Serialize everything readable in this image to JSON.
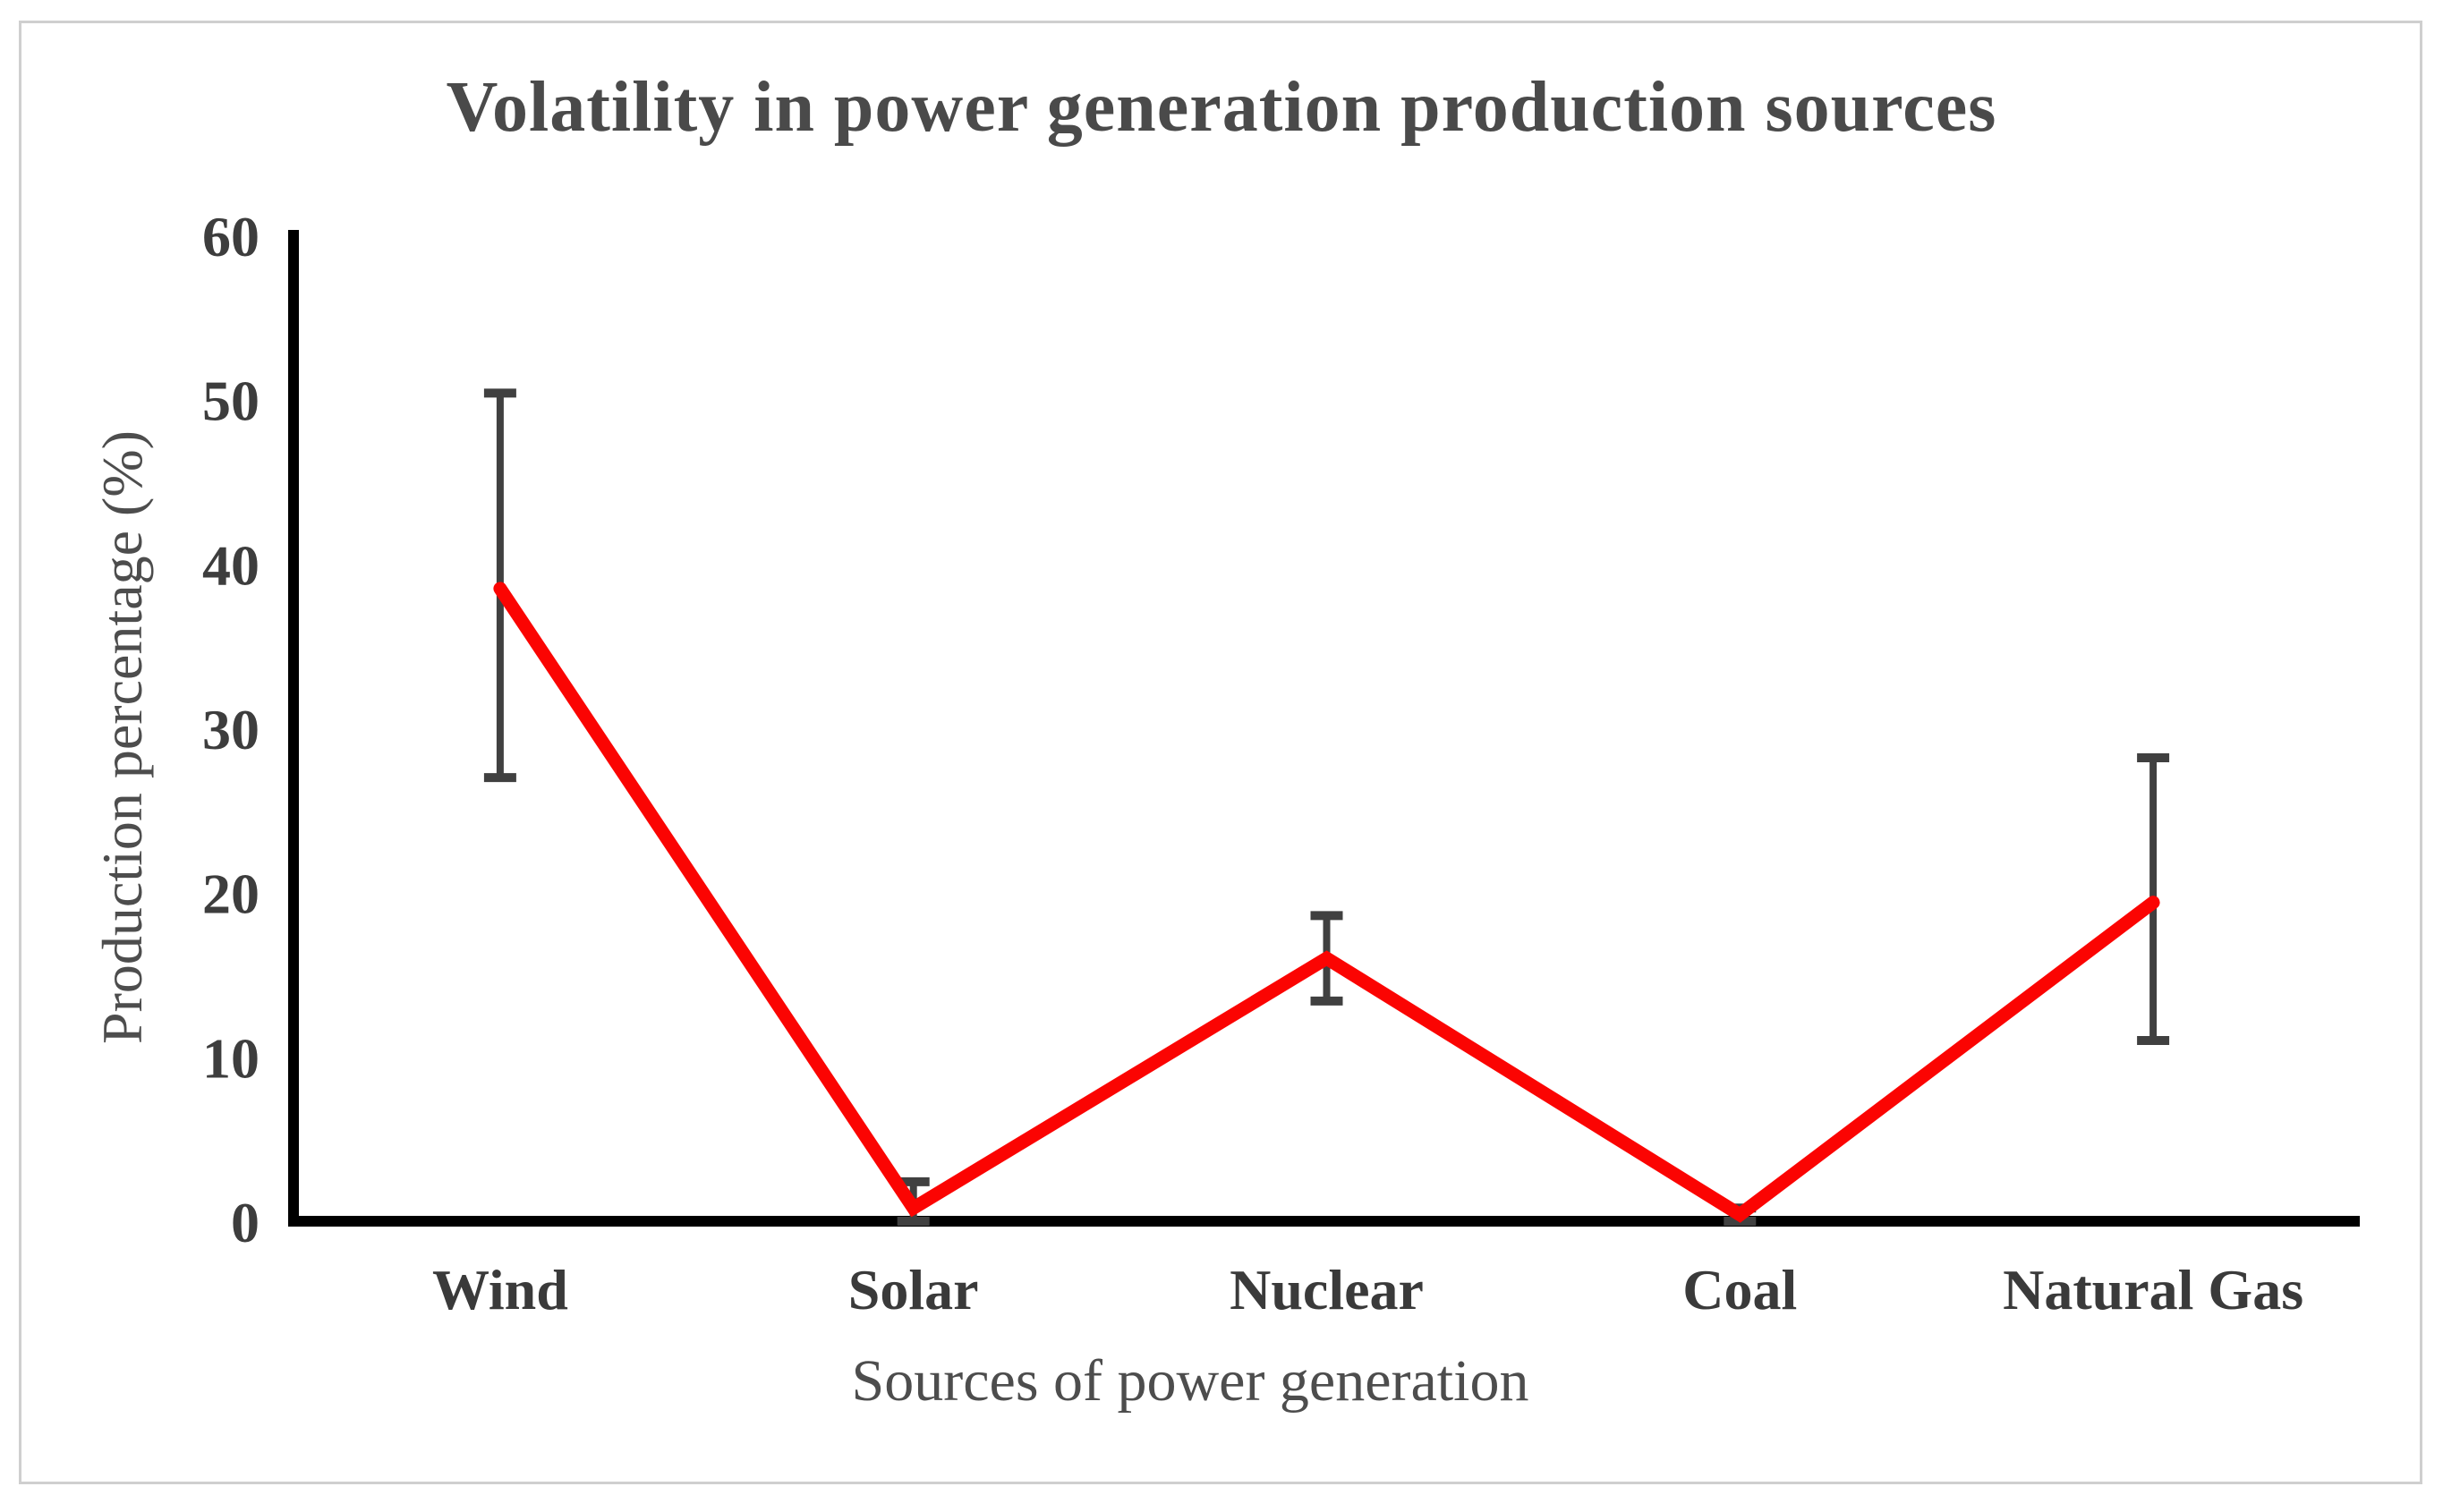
{
  "chart_data": {
    "type": "line",
    "title": "Volatility in power generation production sources",
    "xlabel": "Sources of power generation",
    "ylabel": "Production percentage (%)",
    "categories": [
      "Wind",
      "Solar",
      "Nuclear",
      "Coal",
      "Natural Gas"
    ],
    "series": [
      {
        "values": [
          38.5,
          0.8,
          16,
          0.4,
          19.4
        ],
        "error_low": [
          27,
          0,
          13.4,
          0,
          11
        ],
        "error_high": [
          50.4,
          2.4,
          18.6,
          0.8,
          28.2
        ]
      }
    ],
    "ylim": [
      0,
      60
    ],
    "yticks": [
      0,
      10,
      20,
      30,
      40,
      50,
      60
    ],
    "grid": false,
    "legend": "none",
    "line_color": "#fb0402",
    "error_bar_color": "#404040",
    "axis_color": "#000000",
    "tick_text_color": "#3d3d3d",
    "title_color": "#4a4a4a"
  }
}
